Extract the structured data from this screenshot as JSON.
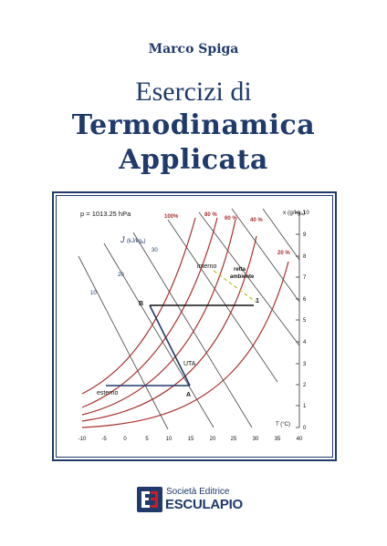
{
  "cover": {
    "author": "Marco Spiga",
    "title_line1": "Esercizi di",
    "title_line2": "Termodinamica",
    "title_line3": "Applicata",
    "publisher_line1": "Società Editrice",
    "publisher_line2": "ESCULAPIO"
  },
  "chart": {
    "pressure_label": "p = 1013.25  hPa",
    "enthalpy_label": "J",
    "enthalpy_unit": "(kJ/kg",
    "enthalpy_sub": "a",
    "enthalpy_close": ")",
    "humidity_axis_label": "x (g/kg",
    "humidity_axis_sub": "a",
    "humidity_axis_close": ")",
    "temp_axis_label": "T (°C)",
    "rh_labels": [
      "100%",
      "80 %",
      "60 %",
      "40 %",
      "20 %"
    ],
    "enthalpy_values": [
      "10",
      "20",
      "30"
    ],
    "x_ticks": [
      "-10",
      "-5",
      "0",
      "5",
      "10",
      "15",
      "20",
      "25",
      "30",
      "35",
      "40"
    ],
    "y_ticks": [
      "0",
      "1",
      "2",
      "3",
      "4",
      "5",
      "6",
      "7",
      "8",
      "9",
      "10"
    ],
    "points": {
      "B": "B",
      "A": "A",
      "one": "1"
    },
    "annotations": {
      "interno": "interno",
      "retta": "retta",
      "ambiente": "ambiente",
      "uta": "UTA",
      "esterno": "esterno"
    },
    "colors": {
      "curves": "#a8312f",
      "enthalpy_lines": "#555555",
      "process": "#1f3a6b",
      "dashed": "#b8c020"
    }
  }
}
